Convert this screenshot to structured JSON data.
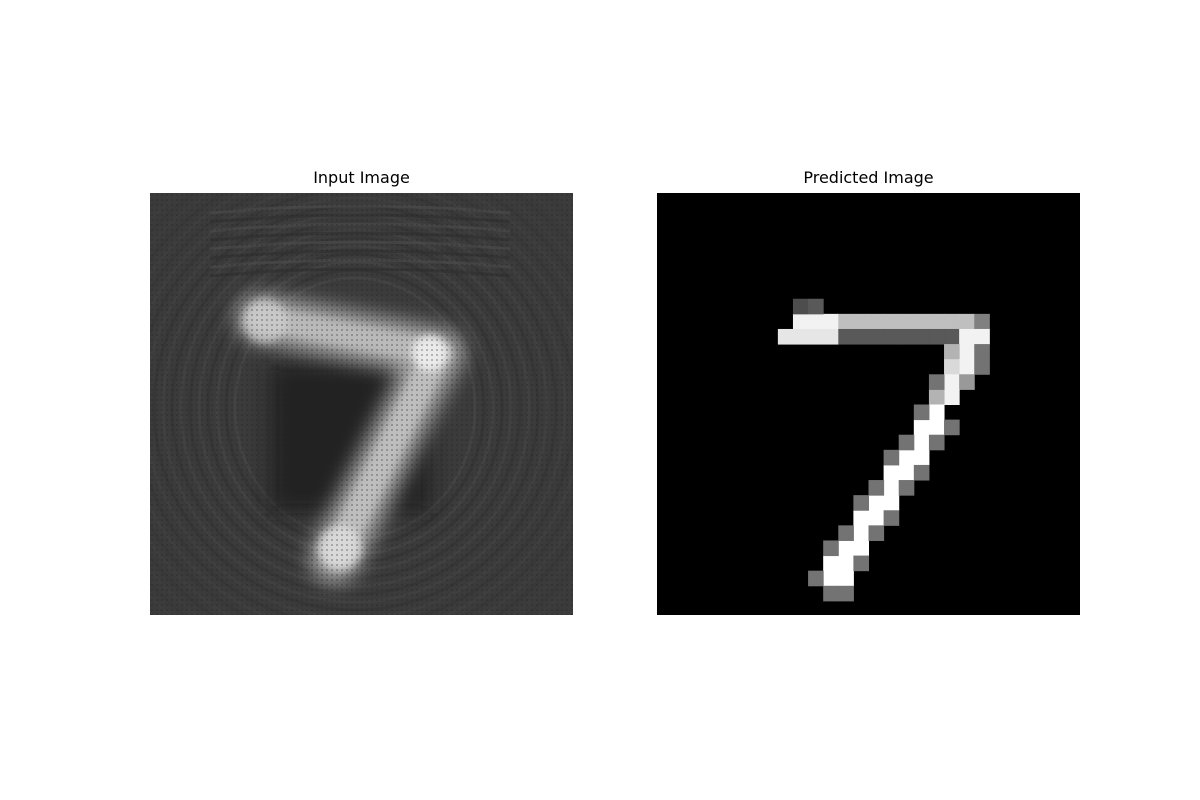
{
  "figure": {
    "panels": [
      {
        "title": "Input Image",
        "content": "blurred handwritten digit 7 with ringing artifacts"
      },
      {
        "title": "Predicted Image",
        "content": "pixelated handwritten digit 7"
      }
    ]
  },
  "colors": {
    "input_background": "#3b3b3b",
    "predicted_background": "#000000",
    "digit_white": "#ffffff"
  }
}
